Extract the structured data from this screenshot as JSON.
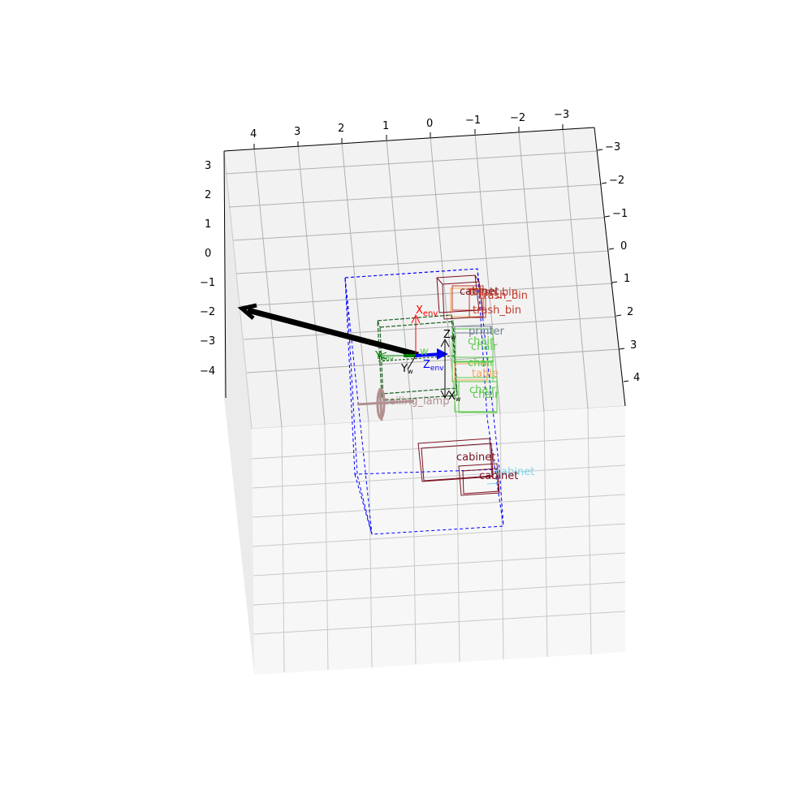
{
  "axes": {
    "top_ticks": [
      "4",
      "3",
      "2",
      "1",
      "0",
      "−1",
      "−2",
      "−3"
    ],
    "left_ticks": [
      "3",
      "2",
      "1",
      "0",
      "−1",
      "−2",
      "−3",
      "−4"
    ],
    "right_ticks": [
      "−3",
      "−2",
      "−1",
      "0",
      "1",
      "2",
      "3",
      "4"
    ]
  },
  "objects": {
    "cabinet_top": "cabinet",
    "trash_bin_1": "trash_bin",
    "trash_bin_2": "trash_bin",
    "trash_bin_3": "trash_bin",
    "printer": "printer",
    "chair_1": "chair",
    "chair_2": "chair",
    "chair_3": "chair",
    "chair_4": "chair",
    "table": "table",
    "chair_5": "chair",
    "ceiling_lamp": "ceiling_lamp",
    "cabinet_mid": "cabinet",
    "cabinet_light": "cabinet",
    "cabinet_low": "cabinet"
  },
  "frame_labels": {
    "x_env": "X",
    "x_env_sub": "env",
    "y_env": "Y",
    "y_env_sub": "env",
    "z_env": "Z",
    "z_env_sub": "env",
    "z_w": "Z",
    "z_w_sub": "w",
    "y_w": "Y",
    "y_w_sub": "w",
    "x_w": "X",
    "x_w_sub": "w",
    "w": "w"
  },
  "colors": {
    "cabinet": "#7a1020",
    "trash_bin": "#c0392b",
    "printer": "#708090",
    "chair": "#5cc94a",
    "table": "#f5a65b",
    "ceiling_lamp": "#b09090",
    "cabinet_light": "#7fd3e8",
    "env_box": "#0000ff",
    "x_axis": "#ff0000",
    "y_axis": "#008000",
    "z_axis": "#0000ff"
  }
}
